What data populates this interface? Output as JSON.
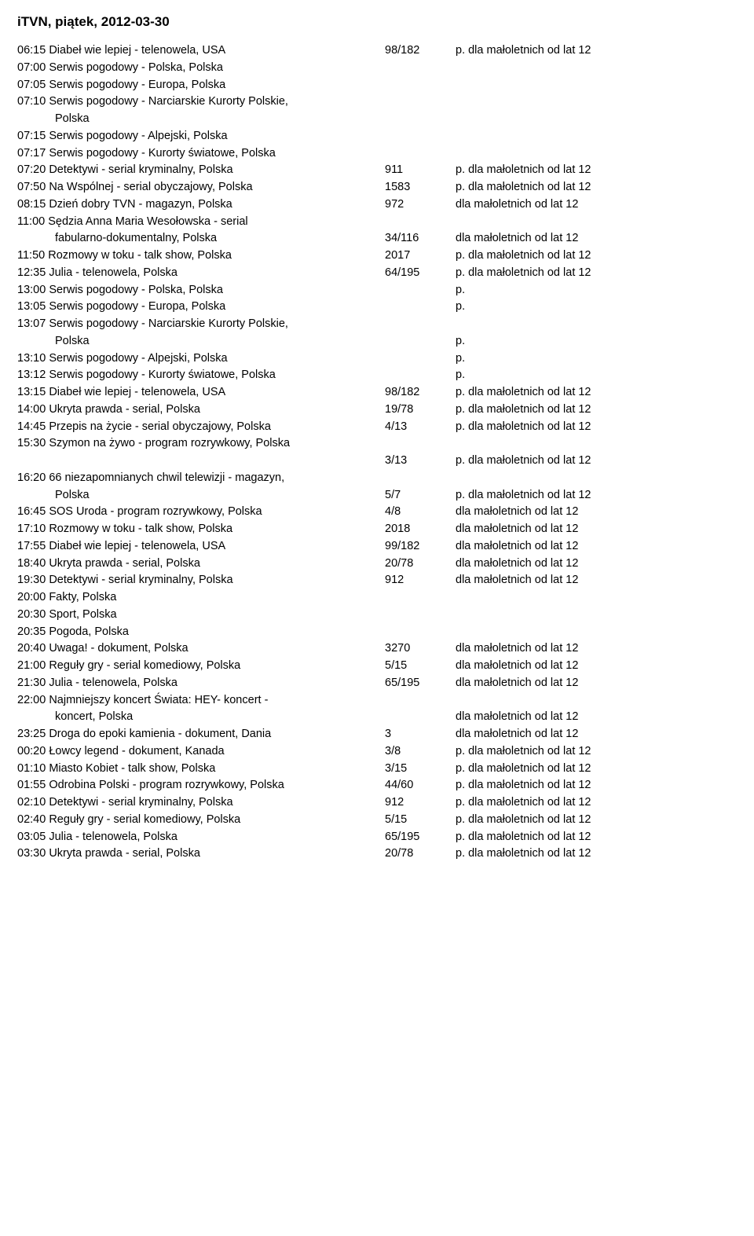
{
  "title": "iTVN, piątek, 2012-03-30",
  "columns": {
    "desc_width": 460,
    "ep_width": 90
  },
  "rows": [
    {
      "desc": "06:15 Diabeł wie lepiej - telenowela, USA",
      "ep": "98/182",
      "rating": "p. dla małoletnich od lat 12"
    },
    {
      "desc": "07:00 Serwis pogodowy - Polska, Polska",
      "ep": "",
      "rating": ""
    },
    {
      "desc": "07:05 Serwis pogodowy - Europa, Polska",
      "ep": "",
      "rating": ""
    },
    {
      "desc": "07:10 Serwis pogodowy - Narciarskie Kurorty Polskie,",
      "ep": "",
      "rating": ""
    },
    {
      "desc_cont": "Polska",
      "ep": "",
      "rating": ""
    },
    {
      "desc": "07:15 Serwis pogodowy - Alpejski, Polska",
      "ep": "",
      "rating": ""
    },
    {
      "desc": "07:17 Serwis pogodowy - Kurorty światowe, Polska",
      "ep": "",
      "rating": ""
    },
    {
      "desc": "07:20 Detektywi - serial kryminalny, Polska",
      "ep": "911",
      "rating": "p. dla małoletnich od lat 12"
    },
    {
      "desc": "07:50 Na Wspólnej - serial obyczajowy, Polska",
      "ep": "1583",
      "rating": "p. dla małoletnich od lat 12"
    },
    {
      "desc": "08:15 Dzień dobry TVN - magazyn, Polska",
      "ep": "972",
      "rating": "dla małoletnich od lat 12"
    },
    {
      "desc": "11:00 Sędzia Anna Maria Wesołowska - serial",
      "ep": "",
      "rating": ""
    },
    {
      "desc_cont": "fabularno-dokumentalny, Polska",
      "ep": "34/116",
      "rating": "dla małoletnich od lat 12"
    },
    {
      "desc": "11:50 Rozmowy w toku - talk show, Polska",
      "ep": "2017",
      "rating": "p. dla małoletnich od lat 12"
    },
    {
      "desc": "12:35 Julia - telenowela, Polska",
      "ep": "64/195",
      "rating": "p. dla małoletnich od lat 12"
    },
    {
      "desc": "13:00 Serwis pogodowy - Polska, Polska",
      "ep": "",
      "rating": "p."
    },
    {
      "desc": "13:05 Serwis pogodowy - Europa, Polska",
      "ep": "",
      "rating": "p."
    },
    {
      "desc": "13:07 Serwis pogodowy - Narciarskie Kurorty Polskie,",
      "ep": "",
      "rating": ""
    },
    {
      "desc_cont": "Polska",
      "ep": "",
      "rating": "p."
    },
    {
      "desc": "13:10 Serwis pogodowy - Alpejski, Polska",
      "ep": "",
      "rating": "p."
    },
    {
      "desc": "13:12 Serwis pogodowy - Kurorty światowe, Polska",
      "ep": "",
      "rating": "p."
    },
    {
      "desc": "13:15 Diabeł wie lepiej - telenowela, USA",
      "ep": "98/182",
      "rating": "p. dla małoletnich od lat 12"
    },
    {
      "desc": "14:00 Ukryta prawda - serial, Polska",
      "ep": "19/78",
      "rating": "p. dla małoletnich od lat 12"
    },
    {
      "desc": "14:45 Przepis na życie - serial obyczajowy, Polska",
      "ep": "4/13",
      "rating": "p. dla małoletnich od lat 12"
    },
    {
      "desc": "15:30 Szymon na żywo - program rozrywkowy, Polska",
      "ep": "",
      "rating": ""
    },
    {
      "desc_cont": "",
      "ep": "3/13",
      "rating": "p. dla małoletnich od lat 12"
    },
    {
      "desc": "16:20 66 niezapomnianych chwil telewizji - magazyn,",
      "ep": "",
      "rating": ""
    },
    {
      "desc_cont": "Polska",
      "ep": "5/7",
      "rating": "p. dla małoletnich od lat 12"
    },
    {
      "desc": "16:45 SOS Uroda - program rozrywkowy, Polska",
      "ep": "4/8",
      "rating": "dla małoletnich od lat 12"
    },
    {
      "desc": "17:10 Rozmowy w toku - talk show, Polska",
      "ep": "2018",
      "rating": "dla małoletnich od lat 12"
    },
    {
      "desc": "17:55 Diabeł wie lepiej - telenowela, USA",
      "ep": "99/182",
      "rating": "dla małoletnich od lat 12"
    },
    {
      "desc": "18:40 Ukryta prawda - serial, Polska",
      "ep": "20/78",
      "rating": "dla małoletnich od lat 12"
    },
    {
      "desc": "19:30 Detektywi - serial kryminalny, Polska",
      "ep": "912",
      "rating": "dla małoletnich od lat 12"
    },
    {
      "desc": "20:00 Fakty, Polska",
      "ep": "",
      "rating": ""
    },
    {
      "desc": "20:30 Sport, Polska",
      "ep": "",
      "rating": ""
    },
    {
      "desc": "20:35 Pogoda, Polska",
      "ep": "",
      "rating": ""
    },
    {
      "desc": "20:40 Uwaga! - dokument, Polska",
      "ep": "3270",
      "rating": "dla małoletnich od lat 12"
    },
    {
      "desc": "21:00 Reguły gry - serial komediowy, Polska",
      "ep": "5/15",
      "rating": "dla małoletnich od lat 12"
    },
    {
      "desc": "21:30 Julia - telenowela, Polska",
      "ep": "65/195",
      "rating": "dla małoletnich od lat 12"
    },
    {
      "desc": "22:00 Najmniejszy koncert Świata: HEY- koncert -",
      "ep": "",
      "rating": ""
    },
    {
      "desc_cont": "koncert, Polska",
      "ep": "",
      "rating": "dla małoletnich od lat 12"
    },
    {
      "desc": "23:25 Droga do epoki kamienia - dokument, Dania",
      "ep": "3",
      "rating": "dla małoletnich od lat 12"
    },
    {
      "desc": "00:20 Łowcy legend - dokument, Kanada",
      "ep": "3/8",
      "rating": "p. dla małoletnich od lat 12"
    },
    {
      "desc": "01:10 Miasto Kobiet - talk show, Polska",
      "ep": "3/15",
      "rating": "p. dla małoletnich od lat 12"
    },
    {
      "desc": "01:55 Odrobina Polski - program rozrywkowy, Polska",
      "ep": "44/60",
      "rating": "p. dla małoletnich od lat 12"
    },
    {
      "desc": "02:10 Detektywi - serial kryminalny, Polska",
      "ep": "912",
      "rating": "p. dla małoletnich od lat 12"
    },
    {
      "desc": "02:40 Reguły gry - serial komediowy, Polska",
      "ep": "5/15",
      "rating": "p. dla małoletnich od lat 12"
    },
    {
      "desc": "03:05 Julia - telenowela, Polska",
      "ep": "65/195",
      "rating": "p. dla małoletnich od lat 12"
    },
    {
      "desc": "03:30 Ukryta prawda - serial, Polska",
      "ep": "20/78",
      "rating": "p. dla małoletnich od lat 12"
    }
  ]
}
